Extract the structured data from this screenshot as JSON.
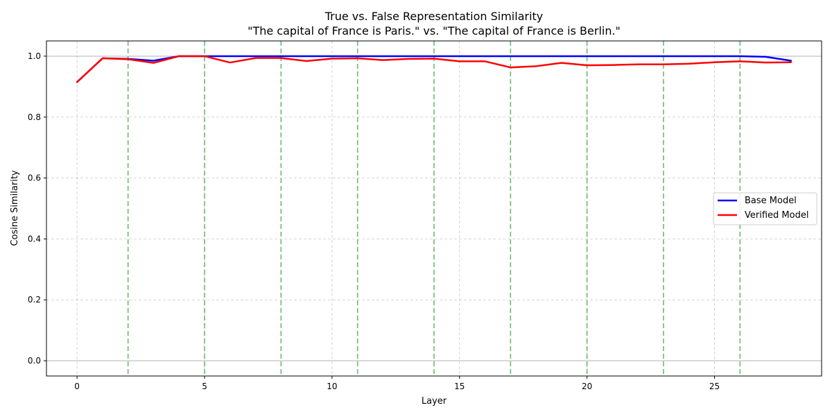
{
  "chart_data": {
    "type": "line",
    "title": "True vs. False Representation Similarity",
    "subtitle": "\"The capital of France is Paris.\" vs. \"The capital of France is Berlin.\"",
    "xlabel": "Layer",
    "ylabel": "Cosine Similarity",
    "xlim": [
      -1.2,
      29.2
    ],
    "ylim": [
      -0.05,
      1.05
    ],
    "xticks": [
      0,
      5,
      10,
      15,
      20,
      25
    ],
    "yticks": [
      0.0,
      0.2,
      0.4,
      0.6,
      0.8,
      1.0
    ],
    "ytick_labels": [
      "0.0",
      "0.2",
      "0.4",
      "0.6",
      "0.8",
      "1.0"
    ],
    "grid": true,
    "legend_position": "center-right",
    "reference_lines_y": [
      0.0,
      1.0
    ],
    "reference_lines_x": [
      2,
      5,
      8,
      11,
      14,
      17,
      20,
      23,
      26
    ],
    "x": [
      0,
      1,
      2,
      3,
      4,
      5,
      6,
      7,
      8,
      9,
      10,
      11,
      12,
      13,
      14,
      15,
      16,
      17,
      18,
      19,
      20,
      21,
      22,
      23,
      24,
      25,
      26,
      27,
      28
    ],
    "series": [
      {
        "name": "Base Model",
        "color": "#0000ff",
        "values": [
          0.915,
          0.993,
          0.991,
          0.985,
          1.0,
          1.0,
          1.0,
          1.0,
          1.0,
          1.0,
          1.0,
          1.0,
          1.0,
          1.0,
          1.0,
          1.0,
          1.0,
          1.0,
          1.0,
          1.0,
          1.0,
          1.0,
          1.0,
          1.0,
          1.0,
          1.0,
          1.0,
          0.998,
          0.985
        ]
      },
      {
        "name": "Verified Model",
        "color": "#ff0000",
        "values": [
          0.915,
          0.993,
          0.99,
          0.978,
          1.0,
          1.0,
          0.979,
          0.994,
          0.994,
          0.984,
          0.992,
          0.993,
          0.987,
          0.991,
          0.992,
          0.983,
          0.983,
          0.963,
          0.967,
          0.978,
          0.97,
          0.971,
          0.973,
          0.973,
          0.975,
          0.98,
          0.983,
          0.979,
          0.98
        ]
      }
    ],
    "colors": {
      "grid": "#b0b0b0",
      "reference": "#b0b0b0",
      "vline": "#4caf50"
    }
  }
}
